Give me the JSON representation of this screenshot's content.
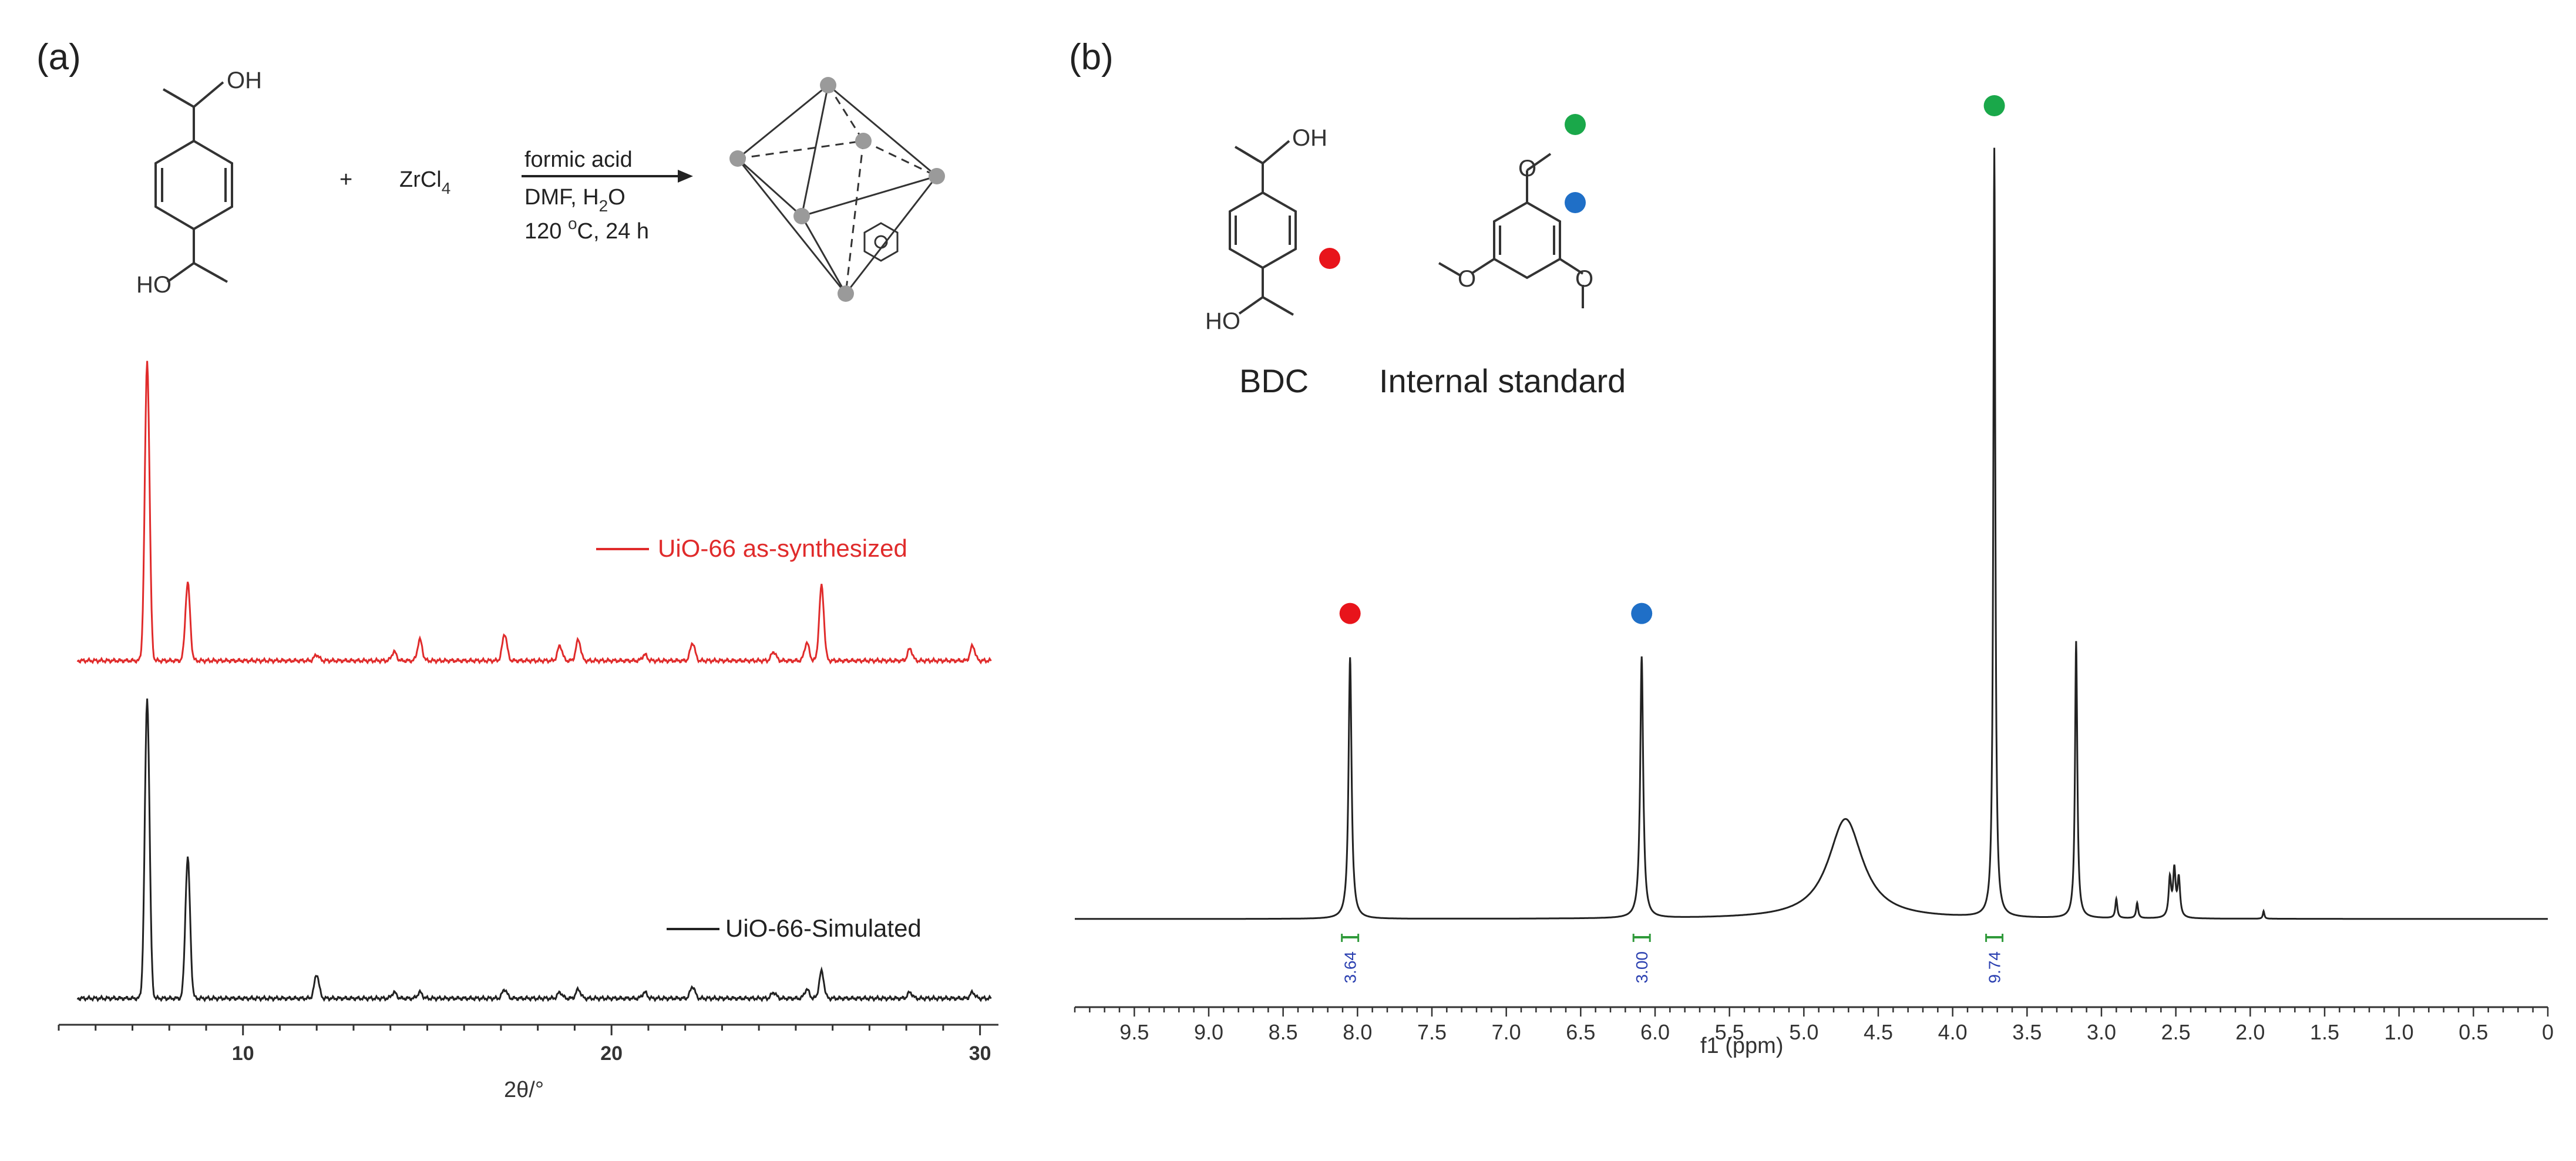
{
  "panels": {
    "a": {
      "label": "(a)",
      "scheme": {
        "reactant_oh_top": "OH",
        "reactant_ho_bottom": "HO",
        "plus": "+",
        "zr_reagent_main": "ZrCl",
        "zr_reagent_sub": "4",
        "condition_1": "formic acid",
        "condition_2_main": "DMF, H",
        "condition_2_sub": "2",
        "condition_2_tail": "O",
        "condition_3_pre": "120 ",
        "condition_3_sup": "o",
        "condition_3_post": "C, 24 h"
      }
    },
    "b": {
      "label": "(b)",
      "structures": {
        "bdc_oh": "OH",
        "bdc_ho": "HO",
        "bdc_label": "BDC",
        "standard_label": "Internal standard"
      }
    }
  },
  "colors": {
    "red_trace": "#e02b2b",
    "black_trace": "#222222",
    "marker_red": "#e8141b",
    "marker_blue": "#1f6fc7",
    "marker_green": "#1aa84a",
    "integration_green": "#2f9a3a",
    "integration_text": "#2a3fb0"
  },
  "chart_data": [
    {
      "type": "line",
      "xlabel": "2θ/°",
      "ylabel": "",
      "xlim": [
        5,
        30.5
      ],
      "xticks": [
        "10",
        "20",
        "30"
      ],
      "series": [
        {
          "name": "UiO-66 as-synthesized",
          "color": "#e02b2b",
          "peaks": [
            {
              "x": 7.4,
              "h": 1.0
            },
            {
              "x": 8.5,
              "h": 0.26
            },
            {
              "x": 12.0,
              "h": 0.02
            },
            {
              "x": 14.1,
              "h": 0.03
            },
            {
              "x": 14.8,
              "h": 0.07
            },
            {
              "x": 17.1,
              "h": 0.09
            },
            {
              "x": 18.6,
              "h": 0.05
            },
            {
              "x": 19.1,
              "h": 0.07
            },
            {
              "x": 20.9,
              "h": 0.02
            },
            {
              "x": 22.2,
              "h": 0.06
            },
            {
              "x": 24.4,
              "h": 0.03
            },
            {
              "x": 25.3,
              "h": 0.06
            },
            {
              "x": 25.7,
              "h": 0.25
            },
            {
              "x": 28.1,
              "h": 0.04
            },
            {
              "x": 29.8,
              "h": 0.05
            }
          ]
        },
        {
          "name": "UiO-66-Simulated",
          "color": "#222222",
          "peaks": [
            {
              "x": 7.4,
              "h": 1.0
            },
            {
              "x": 8.5,
              "h": 0.47
            },
            {
              "x": 12.0,
              "h": 0.08
            },
            {
              "x": 14.1,
              "h": 0.02
            },
            {
              "x": 14.8,
              "h": 0.02
            },
            {
              "x": 17.1,
              "h": 0.03
            },
            {
              "x": 18.6,
              "h": 0.02
            },
            {
              "x": 19.1,
              "h": 0.03
            },
            {
              "x": 20.9,
              "h": 0.02
            },
            {
              "x": 22.2,
              "h": 0.04
            },
            {
              "x": 24.4,
              "h": 0.02
            },
            {
              "x": 25.3,
              "h": 0.03
            },
            {
              "x": 25.7,
              "h": 0.09
            },
            {
              "x": 28.1,
              "h": 0.02
            },
            {
              "x": 29.8,
              "h": 0.02
            }
          ]
        }
      ]
    },
    {
      "type": "line",
      "xlabel": "f1 (ppm)",
      "ylabel": "",
      "xlim": [
        9.9,
        0
      ],
      "xticks": [
        "9.5",
        "9.0",
        "8.5",
        "8.0",
        "7.5",
        "7.0",
        "6.5",
        "6.0",
        "5.5",
        "5.0",
        "4.5",
        "4.0",
        "3.5",
        "3.0",
        "2.5",
        "2.0",
        "1.5",
        "1.0",
        "0.5",
        "0"
      ],
      "peaks": [
        {
          "x": 8.05,
          "h": 0.34,
          "w": 0.012
        },
        {
          "x": 6.09,
          "h": 0.34,
          "w": 0.012
        },
        {
          "x": 4.72,
          "h": 0.13,
          "w": 0.14
        },
        {
          "x": 3.72,
          "h": 1.0,
          "w": 0.008
        },
        {
          "x": 3.17,
          "h": 0.36,
          "w": 0.009
        },
        {
          "x": 2.9,
          "h": 0.025,
          "w": 0.008
        },
        {
          "x": 2.76,
          "h": 0.02,
          "w": 0.008
        },
        {
          "x": 2.54,
          "h": 0.05,
          "w": 0.01
        },
        {
          "x": 2.51,
          "h": 0.06,
          "w": 0.01
        },
        {
          "x": 2.48,
          "h": 0.05,
          "w": 0.01
        },
        {
          "x": 1.91,
          "h": 0.01,
          "w": 0.006
        }
      ],
      "integrations": [
        {
          "x": 8.05,
          "label": "3.64"
        },
        {
          "x": 6.09,
          "label": "3.00"
        },
        {
          "x": 3.72,
          "label": "9.74"
        }
      ],
      "markers": [
        {
          "x": 8.05,
          "color": "#e8141b"
        },
        {
          "x": 6.09,
          "color": "#1f6fc7"
        },
        {
          "x": 3.72,
          "color": "#1aa84a"
        }
      ]
    }
  ]
}
